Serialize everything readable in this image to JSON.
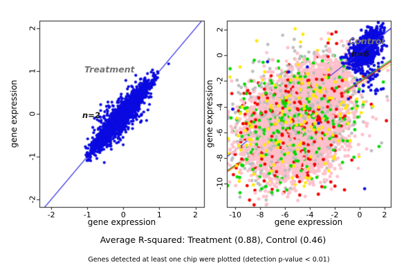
{
  "background": "#ffffff",
  "captions": {
    "r_squared_line": "Average R-squared: Treatment (0.88), Control (0.46)",
    "note_line": "Genes detected at least one chip were plotted (detection p-value < 0.01)"
  },
  "r_squared": {
    "treatment": 0.88,
    "control": 0.46
  },
  "chart_data": [
    {
      "type": "scatter",
      "title": "Treatment",
      "n_label": "n=2",
      "xlabel": "gene expression",
      "ylabel": "gene expression",
      "xlim": [
        -2.33,
        2.24
      ],
      "ylim": [
        -2.18,
        2.18
      ],
      "x_ticks": [
        -2,
        -1,
        0,
        1,
        2
      ],
      "y_ticks": [
        -2,
        -1,
        0,
        1,
        2
      ],
      "grid": false,
      "legend": "none",
      "description": "Dense blue scatter of gene expression for 2 treatment chips hugging the y=x identity line from (-1,-1) to (1.2,1.2)",
      "layers": [
        {
          "type": "line",
          "name": "identity-line",
          "color": "#2a2ae6",
          "width": 1.2,
          "slope": 1,
          "intercept": 0,
          "x_from": -2.3,
          "x_to": 2.22
        },
        {
          "type": "cluster",
          "name": "treatment-points",
          "color": "#0a0ae0",
          "count": 2700,
          "center": [
            -0.08,
            -0.08
          ],
          "along": 0.52,
          "perp": 0.075,
          "perp2": {
            "frac": 0.16,
            "sigma": 0.21
          },
          "angle_deg": 45,
          "radius": 2.1,
          "diag_clip": [
            -1.06,
            1.23
          ]
        }
      ]
    },
    {
      "type": "scatter",
      "title": "Control",
      "n_label": "n=6",
      "xlabel": "gene expression",
      "ylabel": "gene expression",
      "xlim": [
        -10.67,
        2.5
      ],
      "ylim": [
        -11.83,
        2.7
      ],
      "x_ticks": [
        -10,
        -8,
        -6,
        -4,
        -2,
        0,
        2
      ],
      "y_ticks": [
        2,
        0,
        -2,
        -4,
        -6,
        -8,
        -10
      ],
      "grid": false,
      "legend": "none",
      "description": "Six control chips: huge noisy pink cloud centered near (-5,-5) ringed by gray, red, green and yellow points, dense blue cluster near (0.5,0.5), per-chip regression lines (blue steeper; red/green/yellow shallower)",
      "layers": [
        {
          "type": "cluster",
          "name": "gray-under",
          "color": "#bdbdbd",
          "count": 650,
          "center": [
            -5.2,
            -5.0
          ],
          "along": 2.5,
          "perp": 1.75,
          "angle_deg": 43,
          "radius": 2.4
        },
        {
          "type": "cluster",
          "name": "red-under",
          "color": "#f20000",
          "count": 120,
          "center": [
            -5.4,
            -5.2
          ],
          "along": 3.0,
          "perp": 2.2,
          "angle_deg": 43,
          "radius": 2.4
        },
        {
          "type": "cluster",
          "name": "green-under",
          "color": "#00d900",
          "count": 130,
          "center": [
            -5.3,
            -5.1
          ],
          "along": 2.9,
          "perp": 2.1,
          "angle_deg": 43,
          "radius": 2.4
        },
        {
          "type": "cluster",
          "name": "yellow-under",
          "color": "#ffe800",
          "count": 110,
          "center": [
            -5.3,
            -5.1
          ],
          "along": 3.0,
          "perp": 2.15,
          "angle_deg": 43,
          "radius": 2.4
        },
        {
          "type": "line",
          "name": "yellow-regression",
          "color": "#e6d23c",
          "width": 1.3,
          "slope": 0.64,
          "intercept": -2.3,
          "x_from": -10.7,
          "x_to": 2.5
        },
        {
          "type": "line",
          "name": "green-regression",
          "color": "#35c435",
          "width": 1.2,
          "slope": 0.655,
          "intercept": -2.0,
          "x_from": -10.7,
          "x_to": 2.5
        },
        {
          "type": "line",
          "name": "red-regression",
          "color": "#f03030",
          "width": 1.2,
          "slope": 0.65,
          "intercept": -2.12,
          "x_from": -10.7,
          "x_to": 2.5
        },
        {
          "type": "line",
          "name": "blue-regression",
          "color": "#2a2ae6",
          "width": 1.2,
          "slope": 0.76,
          "intercept": 0.2,
          "x_from": -10.7,
          "x_to": 2.5
        },
        {
          "type": "cluster",
          "name": "pink-core-a",
          "color": "#ffc0cb",
          "count": 2600,
          "center": [
            -5.4,
            -5.0
          ],
          "along": 2.0,
          "perp": 1.45,
          "angle_deg": 42,
          "radius": 2.5
        },
        {
          "type": "cluster",
          "name": "pink-core-b",
          "color": "#ffc0cb",
          "count": 1500,
          "center": [
            -4.6,
            -6.9
          ],
          "along": 1.7,
          "perp": 1.25,
          "angle_deg": 35,
          "radius": 2.5
        },
        {
          "type": "cluster",
          "name": "pink-core-c",
          "color": "#ffc0cb",
          "count": 800,
          "center": [
            -2.6,
            -2.3
          ],
          "along": 1.2,
          "perp": 0.85,
          "angle_deg": 45,
          "radius": 2.5
        },
        {
          "type": "cluster",
          "name": "gray-over",
          "color": "#bdbdbd",
          "count": 260,
          "center": [
            -5.0,
            -5.0
          ],
          "along": 2.9,
          "perp": 1.95,
          "angle_deg": 43,
          "radius": 2.4
        },
        {
          "type": "cluster",
          "name": "red-over",
          "color": "#f20000",
          "count": 150,
          "center": [
            -5.2,
            -5.1
          ],
          "along": 3.2,
          "perp": 2.3,
          "angle_deg": 43,
          "radius": 2.4
        },
        {
          "type": "cluster",
          "name": "green-over",
          "color": "#00d900",
          "count": 170,
          "center": [
            -5.2,
            -5.0
          ],
          "along": 3.1,
          "perp": 2.25,
          "angle_deg": 43,
          "radius": 2.4
        },
        {
          "type": "cluster",
          "name": "yellow-over",
          "color": "#ffe800",
          "count": 130,
          "center": [
            -5.3,
            -5.0
          ],
          "along": 3.25,
          "perp": 2.3,
          "angle_deg": 43,
          "radius": 2.4
        },
        {
          "type": "cluster",
          "name": "pink-sparse-over",
          "color": "#ffc0cb",
          "count": 160,
          "center": [
            -5.2,
            -5.2
          ],
          "along": 3.4,
          "perp": 2.5,
          "angle_deg": 43,
          "radius": 2.4
        },
        {
          "type": "cluster",
          "name": "blue-main",
          "color": "#0a0ae0",
          "count": 720,
          "center": [
            0.45,
            0.4
          ],
          "along": 0.78,
          "perp": 0.4,
          "angle_deg": 45,
          "radius": 2.3,
          "diag_clip": [
            -1.9,
            2.3
          ]
        },
        {
          "type": "cluster",
          "name": "blue-top-tip",
          "color": "#0a0ae0",
          "count": 130,
          "center": [
            0.95,
            1.5
          ],
          "along": 0.5,
          "perp": 0.3,
          "angle_deg": 45,
          "radius": 2.3
        },
        {
          "type": "cluster",
          "name": "blue-tail",
          "color": "#0a0ae0",
          "count": 60,
          "center": [
            0.8,
            -1.7
          ],
          "along": 0.8,
          "perp": 0.55,
          "angle_deg": 80,
          "radius": 2.3
        },
        {
          "type": "points",
          "name": "blue-outliers",
          "color": "#0a0ae0",
          "radius": 2.3,
          "pts": [
            [
              0.4,
              -10.4
            ],
            [
              -3.3,
              -5.3
            ],
            [
              -5.7,
              -1.3
            ],
            [
              -4.2,
              -0.9
            ],
            [
              -7.4,
              -0.5
            ],
            [
              1.9,
              -2.6
            ],
            [
              -0.9,
              -3.4
            ],
            [
              -10.2,
              -4.2
            ]
          ]
        },
        {
          "type": "line",
          "name": "red-regression-overlay",
          "color": "#f03030",
          "width": 1.2,
          "slope": 0.65,
          "intercept": -2.12,
          "x_from": -1.4,
          "x_to": 2.5
        },
        {
          "type": "line",
          "name": "green-regression-overlay",
          "color": "#35c435",
          "width": 1.2,
          "slope": 0.655,
          "intercept": -2.0,
          "x_from": -1.3,
          "x_to": 2.5
        },
        {
          "type": "line",
          "name": "blue-regression-overlay",
          "color": "#2a2ae6",
          "width": 1.2,
          "slope": 0.76,
          "intercept": 0.2,
          "x_from": -2.4,
          "x_to": 2.5
        }
      ]
    }
  ]
}
